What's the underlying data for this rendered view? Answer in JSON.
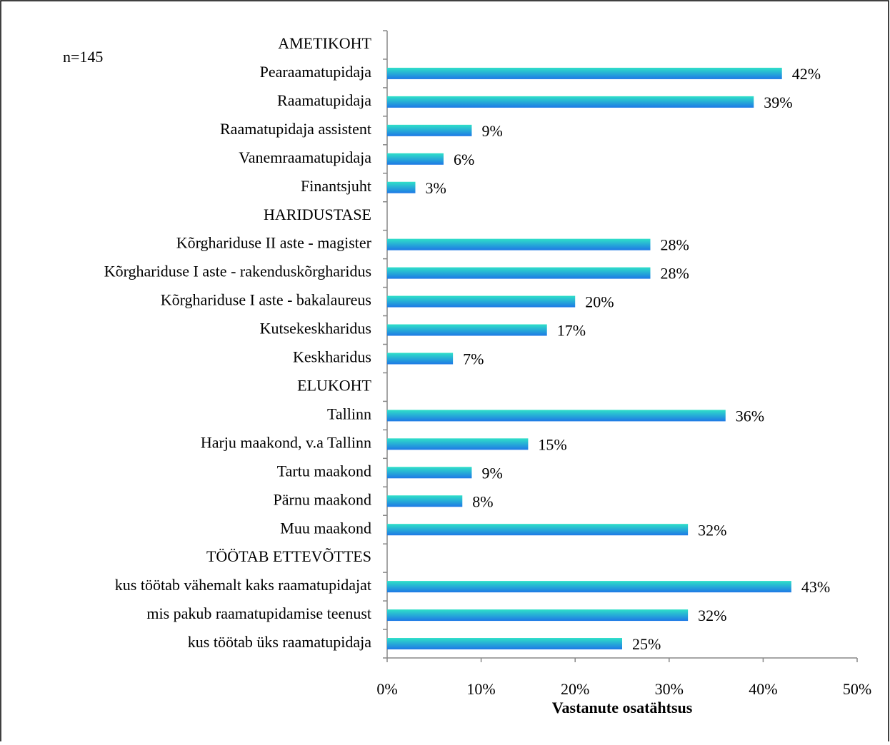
{
  "chart_data": {
    "type": "barh",
    "annotation": "n=145",
    "xlabel": "Vastanute osatähtsus",
    "categories": [
      "AMETIKOHT",
      "Pearaamatupidaja",
      "Raamatupidaja",
      "Raamatupidaja assistent",
      "Vanemraamatupidaja",
      "Finantsjuht",
      "HARIDUSTASE",
      "Kõrghariduse II aste - magister",
      "Kõrghariduse I aste - rakenduskõrgharidus",
      "Kõrghariduse I aste - bakalaureus",
      "Kutsekeskharidus",
      "Keskharidus",
      "ELUKOHT",
      "Tallinn",
      "Harju maakond, v.a Tallinn",
      "Tartu maakond",
      "Pärnu maakond",
      "Muu maakond",
      "TÖÖTAB ETTEVÕTTES",
      "kus töötab vähemalt kaks raamatupidajat",
      "mis pakub raamatupidamise teenust",
      "kus töötab üks raamatupidaja"
    ],
    "values": [
      null,
      42,
      39,
      9,
      6,
      3,
      null,
      28,
      28,
      20,
      17,
      7,
      null,
      36,
      15,
      9,
      8,
      32,
      null,
      43,
      32,
      25
    ],
    "value_labels": [
      null,
      "42%",
      "39%",
      "9%",
      "6%",
      "3%",
      null,
      "28%",
      "28%",
      "20%",
      "17%",
      "7%",
      null,
      "36%",
      "15%",
      "9%",
      "8%",
      "32%",
      null,
      "43%",
      "32%",
      "25%"
    ],
    "color": "#1e78e6",
    "xlim": [
      0,
      50
    ],
    "xticks": [
      {
        "value": 0,
        "label": "0%"
      },
      {
        "value": 10,
        "label": "10%"
      },
      {
        "value": 20,
        "label": "20%"
      },
      {
        "value": 30,
        "label": "30%"
      },
      {
        "value": 40,
        "label": "40%"
      },
      {
        "value": 50,
        "label": "50%"
      }
    ]
  }
}
